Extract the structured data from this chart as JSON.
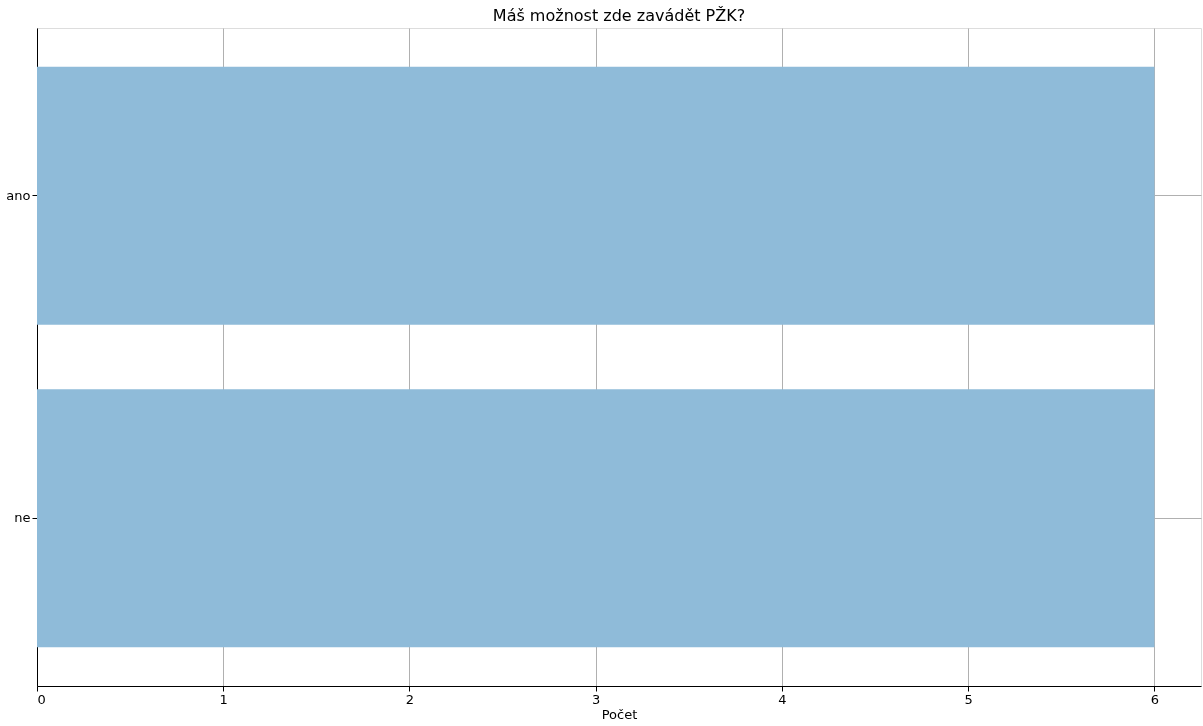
{
  "chart_data": {
    "type": "bar",
    "orientation": "horizontal",
    "title": "Máš možnost zde zavádět PŽK?",
    "xlabel": "Počet",
    "categories": [
      "ano",
      "ne"
    ],
    "values": [
      6,
      6
    ],
    "color": "#8fbbd9",
    "xlim": [
      0,
      6.25
    ],
    "xticks": [
      0,
      1,
      2,
      3,
      4,
      5,
      6
    ],
    "grid": true
  }
}
